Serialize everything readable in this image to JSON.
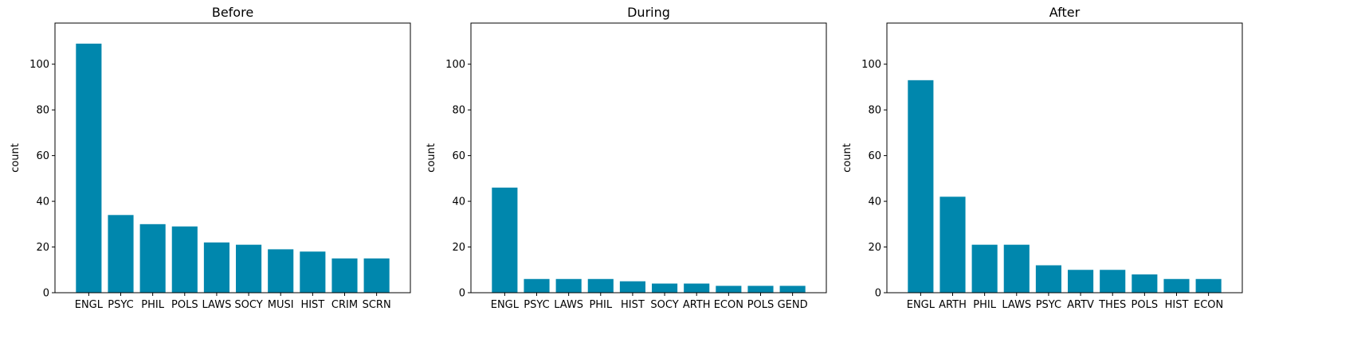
{
  "chart_data": [
    {
      "type": "bar",
      "title": "Before",
      "xlabel": "",
      "ylabel": "count",
      "ylim": [
        0,
        118
      ],
      "yticks": [
        0,
        20,
        40,
        60,
        80,
        100
      ],
      "categories": [
        "ENGL",
        "PSYC",
        "PHIL",
        "POLS",
        "LAWS",
        "SOCY",
        "MUSI",
        "HIST",
        "CRIM",
        "SCRN"
      ],
      "values": [
        109,
        34,
        30,
        29,
        22,
        21,
        19,
        18,
        15,
        15
      ],
      "color": "#0087ad",
      "grid": false,
      "legend": "none"
    },
    {
      "type": "bar",
      "title": "During",
      "xlabel": "",
      "ylabel": "count",
      "ylim": [
        0,
        118
      ],
      "yticks": [
        0,
        20,
        40,
        60,
        80,
        100
      ],
      "categories": [
        "ENGL",
        "PSYC",
        "LAWS",
        "PHIL",
        "HIST",
        "SOCY",
        "ARTH",
        "ECON",
        "POLS",
        "GEND"
      ],
      "values": [
        46,
        6,
        6,
        6,
        5,
        4,
        4,
        3,
        3,
        3
      ],
      "color": "#0087ad",
      "grid": false,
      "legend": "none"
    },
    {
      "type": "bar",
      "title": "After",
      "xlabel": "",
      "ylabel": "count",
      "ylim": [
        0,
        118
      ],
      "yticks": [
        0,
        20,
        40,
        60,
        80,
        100
      ],
      "categories": [
        "ENGL",
        "ARTH",
        "PHIL",
        "LAWS",
        "PSYC",
        "ARTV",
        "THES",
        "POLS",
        "HIST",
        "ECON"
      ],
      "values": [
        93,
        42,
        21,
        21,
        12,
        10,
        10,
        8,
        6,
        6
      ],
      "color": "#0087ad",
      "grid": false,
      "legend": "none"
    }
  ]
}
